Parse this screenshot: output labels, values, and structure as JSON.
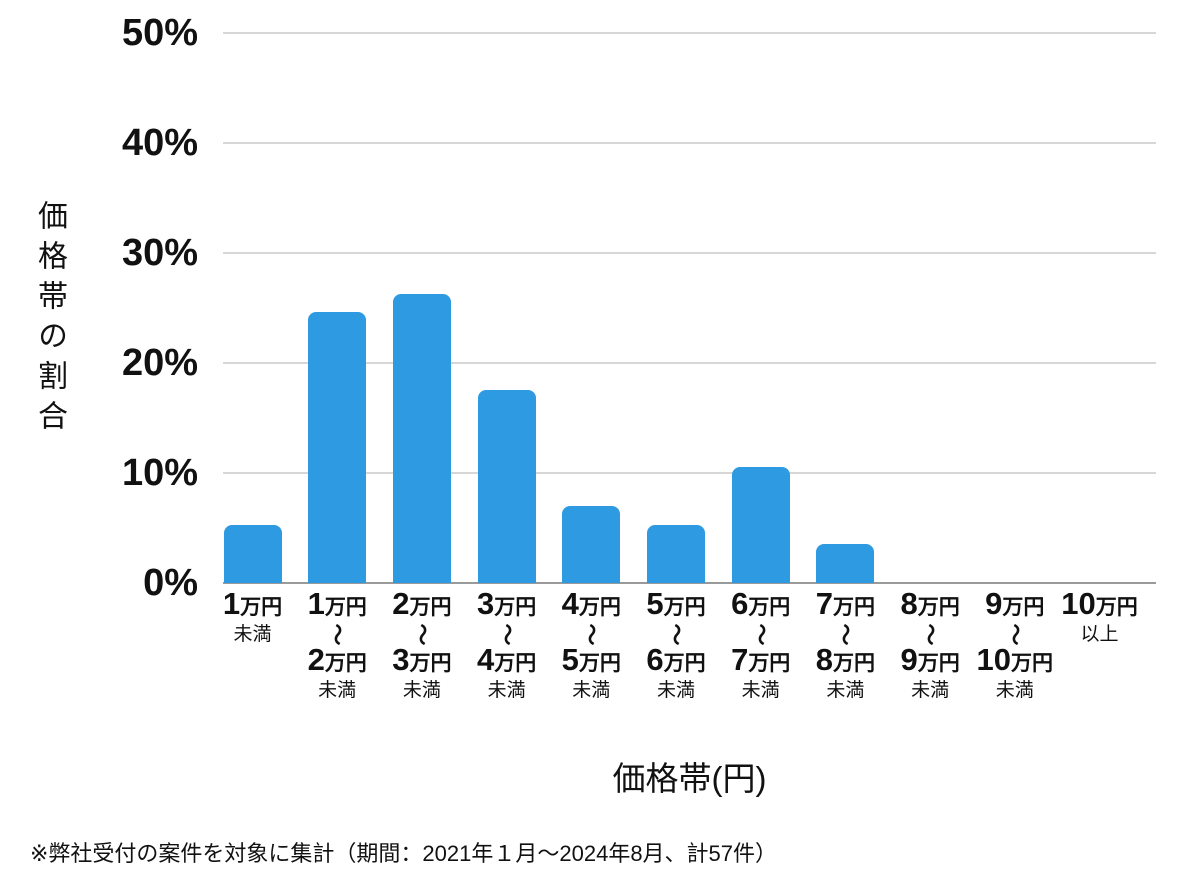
{
  "chart_data": {
    "type": "bar",
    "title": "",
    "xlabel": "価格帯(円)",
    "ylabel": "価格帯の割合",
    "ylim": [
      0,
      50
    ],
    "ytick_labels": [
      "0%",
      "10%",
      "20%",
      "30%",
      "40%",
      "50%"
    ],
    "grid": true,
    "legend": "none",
    "bar_color": "#2d9ae2",
    "categories": [
      {
        "label": "1万円未満",
        "parts": [
          {
            "kind": "amount",
            "num": "1",
            "unit": "万円"
          },
          {
            "kind": "plain",
            "text": "未満"
          }
        ]
      },
      {
        "label": "1万円〜2万円未満",
        "parts": [
          {
            "kind": "amount",
            "num": "1",
            "unit": "万円"
          },
          {
            "kind": "tilde",
            "text": "〜"
          },
          {
            "kind": "amount",
            "num": "2",
            "unit": "万円"
          },
          {
            "kind": "plain",
            "text": "未満"
          }
        ]
      },
      {
        "label": "2万円〜3万円未満",
        "parts": [
          {
            "kind": "amount",
            "num": "2",
            "unit": "万円"
          },
          {
            "kind": "tilde",
            "text": "〜"
          },
          {
            "kind": "amount",
            "num": "3",
            "unit": "万円"
          },
          {
            "kind": "plain",
            "text": "未満"
          }
        ]
      },
      {
        "label": "3万円〜4万円未満",
        "parts": [
          {
            "kind": "amount",
            "num": "3",
            "unit": "万円"
          },
          {
            "kind": "tilde",
            "text": "〜"
          },
          {
            "kind": "amount",
            "num": "4",
            "unit": "万円"
          },
          {
            "kind": "plain",
            "text": "未満"
          }
        ]
      },
      {
        "label": "4万円〜5万円未満",
        "parts": [
          {
            "kind": "amount",
            "num": "4",
            "unit": "万円"
          },
          {
            "kind": "tilde",
            "text": "〜"
          },
          {
            "kind": "amount",
            "num": "5",
            "unit": "万円"
          },
          {
            "kind": "plain",
            "text": "未満"
          }
        ]
      },
      {
        "label": "5万円〜6万円未満",
        "parts": [
          {
            "kind": "amount",
            "num": "5",
            "unit": "万円"
          },
          {
            "kind": "tilde",
            "text": "〜"
          },
          {
            "kind": "amount",
            "num": "6",
            "unit": "万円"
          },
          {
            "kind": "plain",
            "text": "未満"
          }
        ]
      },
      {
        "label": "6万円〜7万円未満",
        "parts": [
          {
            "kind": "amount",
            "num": "6",
            "unit": "万円"
          },
          {
            "kind": "tilde",
            "text": "〜"
          },
          {
            "kind": "amount",
            "num": "7",
            "unit": "万円"
          },
          {
            "kind": "plain",
            "text": "未満"
          }
        ]
      },
      {
        "label": "7万円〜8万円未満",
        "parts": [
          {
            "kind": "amount",
            "num": "7",
            "unit": "万円"
          },
          {
            "kind": "tilde",
            "text": "〜"
          },
          {
            "kind": "amount",
            "num": "8",
            "unit": "万円"
          },
          {
            "kind": "plain",
            "text": "未満"
          }
        ]
      },
      {
        "label": "8万円〜9万円未満",
        "parts": [
          {
            "kind": "amount",
            "num": "8",
            "unit": "万円"
          },
          {
            "kind": "tilde",
            "text": "〜"
          },
          {
            "kind": "amount",
            "num": "9",
            "unit": "万円"
          },
          {
            "kind": "plain",
            "text": "未満"
          }
        ]
      },
      {
        "label": "9万円〜10万円未満",
        "parts": [
          {
            "kind": "amount",
            "num": "9",
            "unit": "万円"
          },
          {
            "kind": "tilde",
            "text": "〜"
          },
          {
            "kind": "amount",
            "num": "10",
            "unit": "万円"
          },
          {
            "kind": "plain",
            "text": "未満"
          }
        ]
      },
      {
        "label": "10万円以上",
        "parts": [
          {
            "kind": "amount",
            "num": "10",
            "unit": "万円"
          },
          {
            "kind": "plain",
            "text": "以上"
          }
        ]
      }
    ],
    "values": [
      5.3,
      24.6,
      26.3,
      17.5,
      7.0,
      5.3,
      10.5,
      3.5,
      0,
      0,
      0
    ]
  },
  "footnote": "※弊社受付の案件を対象に集計（期間：2021年１月〜2024年8月、計57件）"
}
